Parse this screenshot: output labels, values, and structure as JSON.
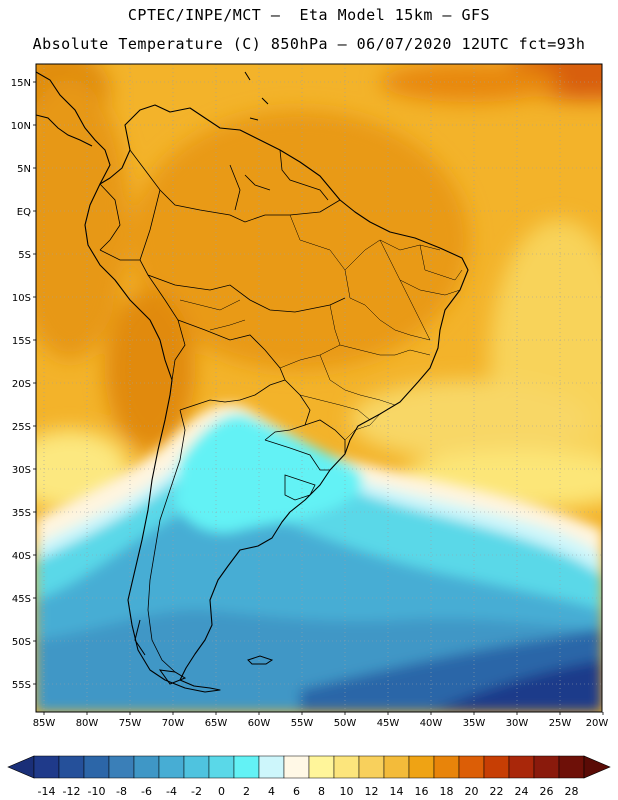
{
  "header": {
    "line1": "CPTEC/INPE/MCT –  Eta Model 15km – GFS",
    "line2": "Absolute Temperature (C) 850hPa – 06/07/2020 12UTC fct=93h"
  },
  "map": {
    "lat_labels": [
      "15N",
      "10N",
      "5N",
      "EQ",
      "5S",
      "10S",
      "15S",
      "20S",
      "25S",
      "30S",
      "35S",
      "40S",
      "45S",
      "50S",
      "55S"
    ],
    "lon_labels": [
      "85W",
      "80W",
      "75W",
      "70W",
      "65W",
      "60W",
      "55W",
      "50W",
      "45W",
      "40W",
      "35W",
      "30W",
      "25W",
      "20W"
    ]
  },
  "colorbar": {
    "colors": [
      "#1f3a8a",
      "#25509a",
      "#2c66a8",
      "#3a7fb8",
      "#3f97c6",
      "#47add4",
      "#4fc3df",
      "#5ad8e8",
      "#63f2f5",
      "#cdf6fb",
      "#fff8e6",
      "#fff59a",
      "#fce57c",
      "#f8d05c",
      "#f3bb3a",
      "#efa314",
      "#e8840a",
      "#dc5e06",
      "#c73e04",
      "#a9270a",
      "#8a1a0c",
      "#6e1008"
    ],
    "labels": [
      "-14",
      "-12",
      "-10",
      "-8",
      "-6",
      "-4",
      "-2",
      "0",
      "2",
      "4",
      "6",
      "8",
      "10",
      "12",
      "14",
      "16",
      "18",
      "20",
      "22",
      "24",
      "26",
      "28"
    ]
  }
}
